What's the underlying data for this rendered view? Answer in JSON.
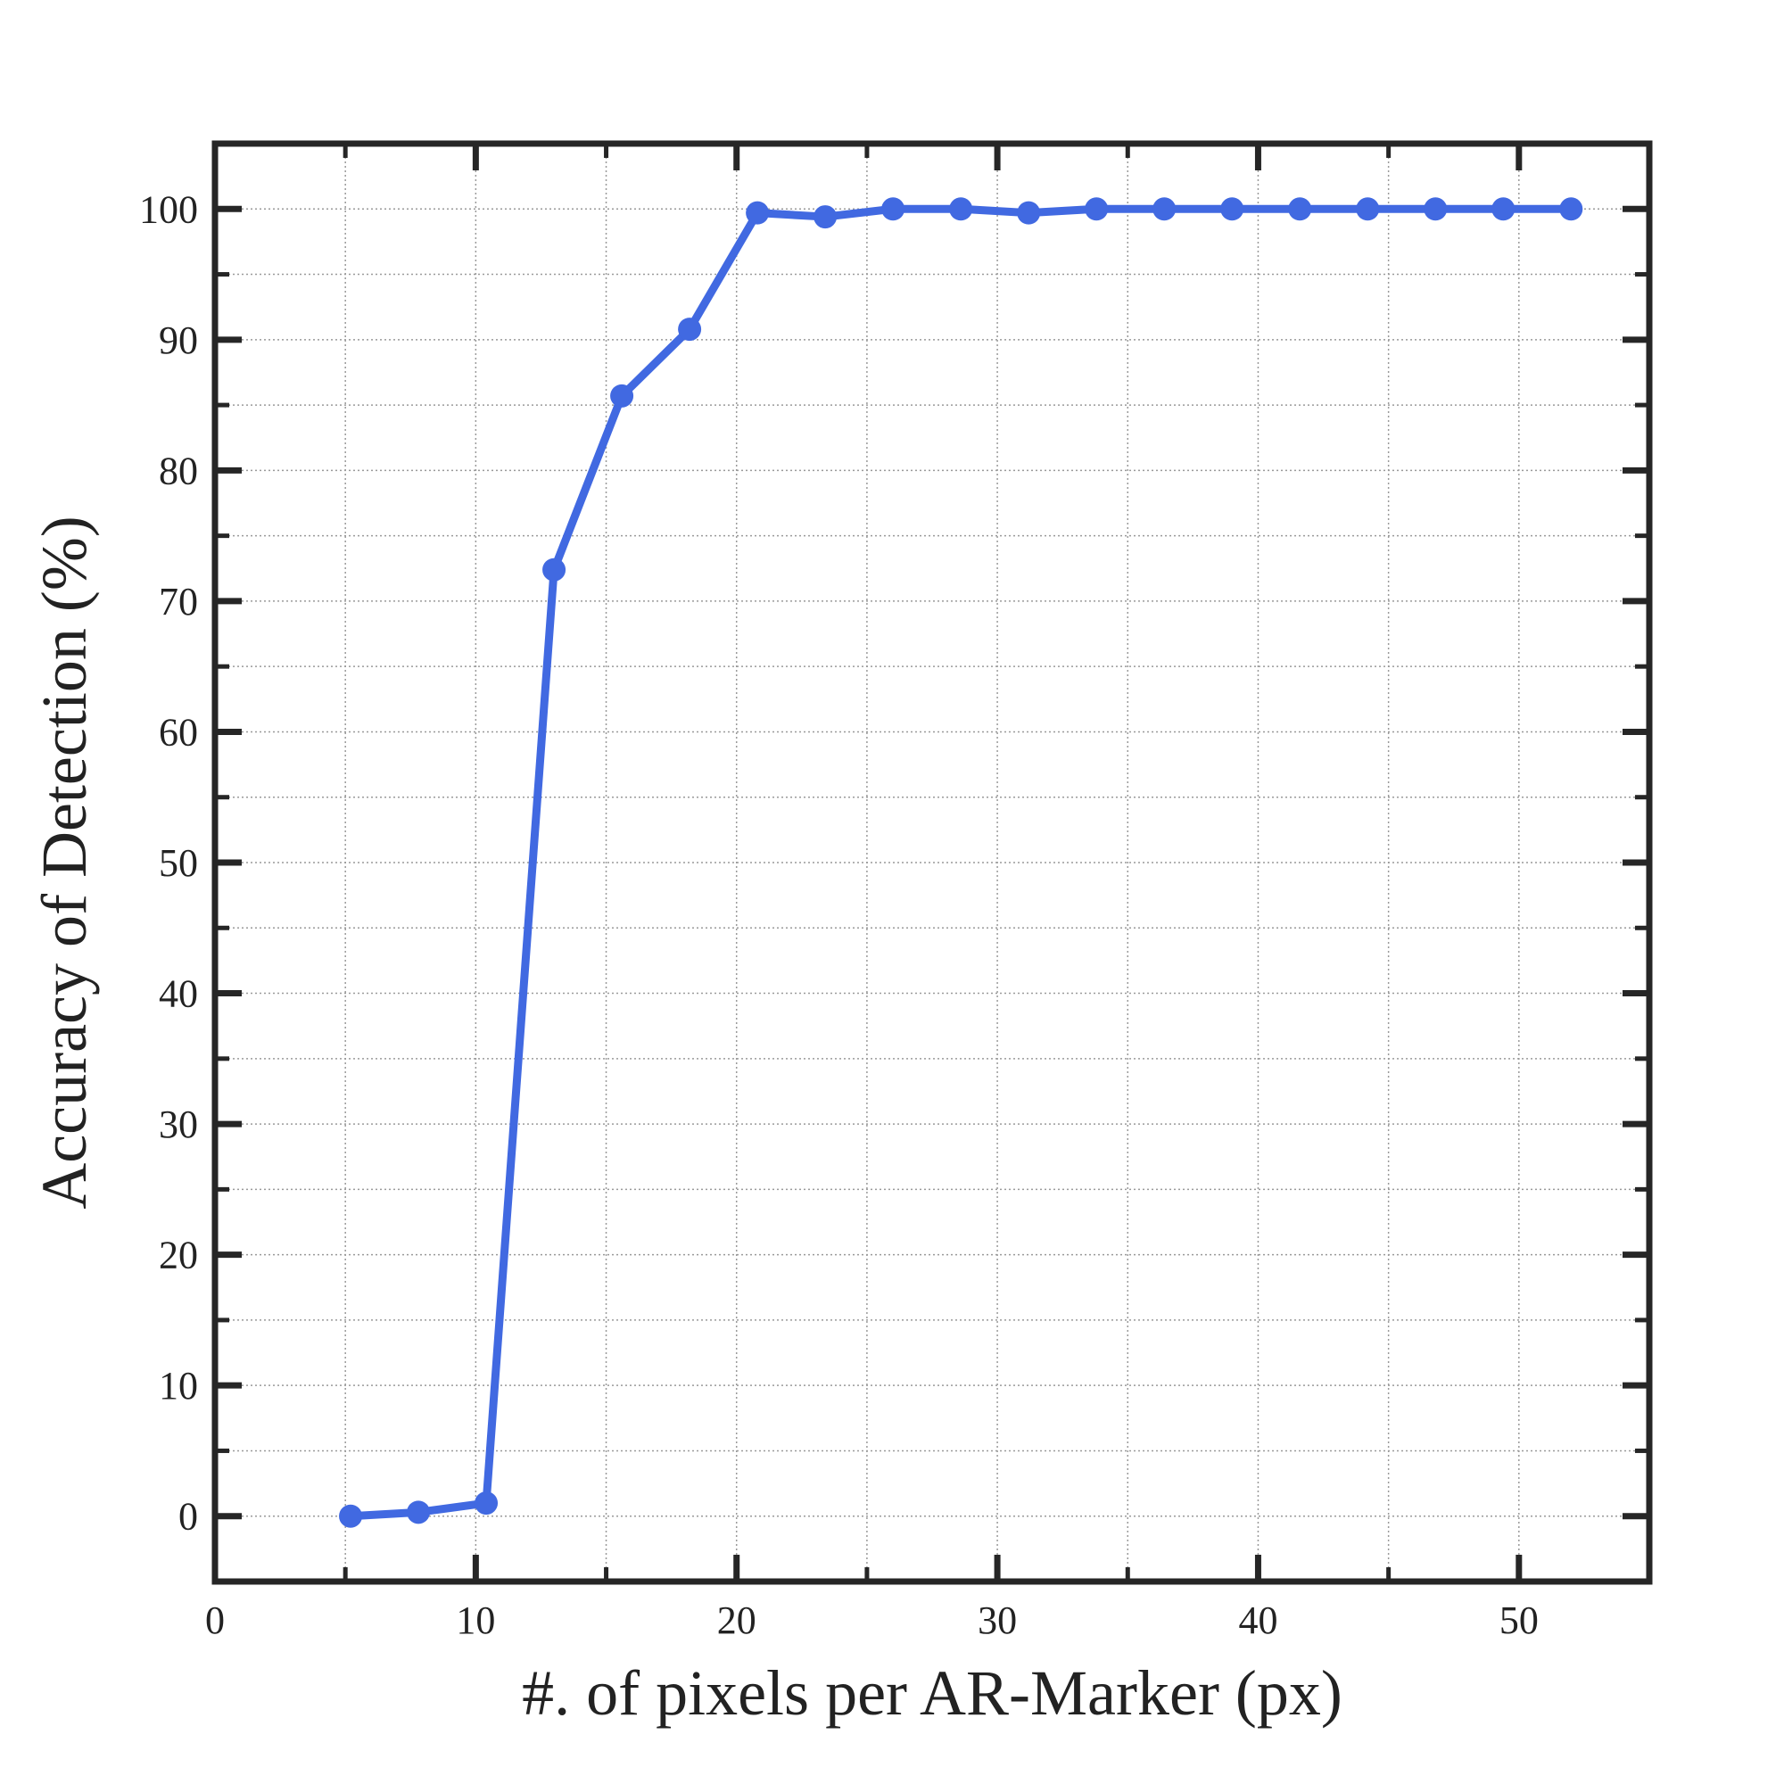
{
  "chart_data": {
    "type": "line",
    "xlabel": "#. of pixels per AR-Marker (px)",
    "ylabel": "Accuracy of Detection (%)",
    "xlim": [
      0,
      55
    ],
    "ylim": [
      -5,
      105
    ],
    "x_major_ticks": [
      0,
      10,
      20,
      30,
      40,
      50
    ],
    "x_minor_ticks": [
      5,
      15,
      25,
      35,
      45
    ],
    "y_major_ticks": [
      0,
      10,
      20,
      30,
      40,
      50,
      60,
      70,
      80,
      90,
      100
    ],
    "y_minor_ticks": [
      5,
      15,
      25,
      35,
      45,
      55,
      65,
      75,
      85,
      95
    ],
    "x_tick_labels": [
      "0",
      "10",
      "20",
      "30",
      "40",
      "50"
    ],
    "y_tick_labels": [
      "0",
      "10",
      "20",
      "30",
      "40",
      "50",
      "60",
      "70",
      "80",
      "90",
      "100"
    ],
    "grid": true,
    "legend": false,
    "line_color": "#4169e1",
    "axis_color": "#262626",
    "grid_color": "#9a9a9a",
    "series": [
      {
        "x": [
          5.2,
          7.8,
          10.4,
          13.0,
          15.6,
          18.2,
          20.8,
          23.4,
          26.0,
          28.6,
          31.2,
          33.8,
          36.4,
          39.0,
          41.6,
          44.2,
          46.8,
          49.4,
          52.0
        ],
        "y": [
          0.0,
          0.3,
          1.0,
          72.4,
          85.7,
          90.8,
          99.7,
          99.4,
          100.0,
          100.0,
          99.7,
          100.0,
          100.0,
          100.0,
          100.0,
          100.0,
          100.0,
          100.0,
          100.0
        ]
      }
    ]
  }
}
